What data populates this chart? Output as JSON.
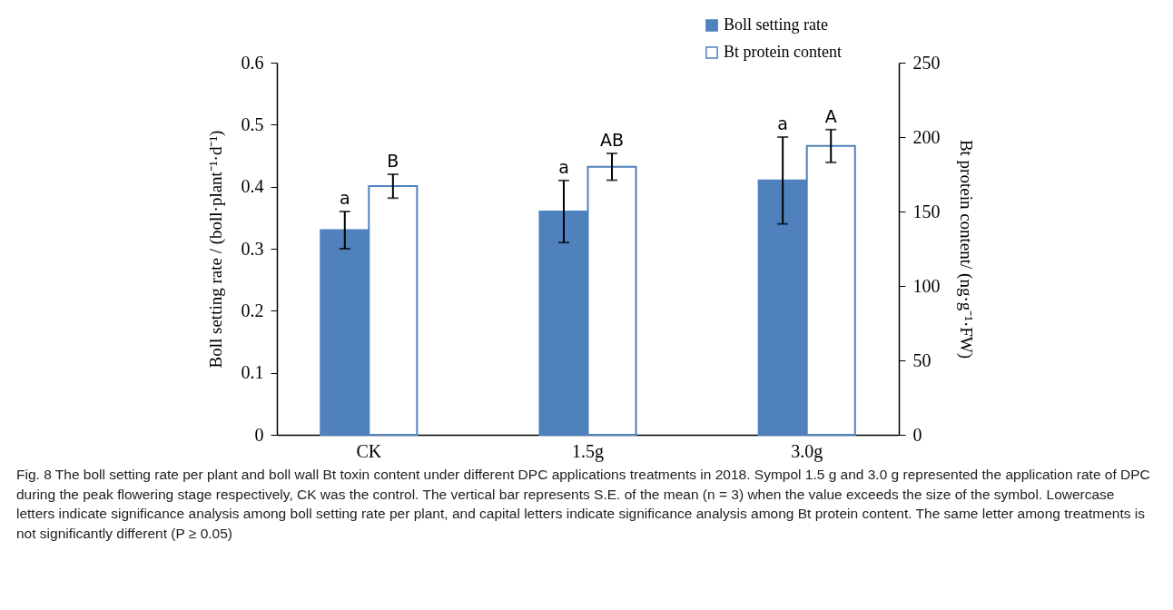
{
  "chart_data": {
    "type": "bar",
    "categories": [
      "CK",
      "1.5g",
      "3.0g"
    ],
    "ylabel": "Boll setting rate / (boll·plant⁻¹·d⁻¹)",
    "y2label": "Bt protein content/ (ng·g⁻¹·FW)",
    "series": [
      {
        "name": "Boll setting rate",
        "color": "#4f81bd",
        "values": [
          0.33,
          0.36,
          0.41
        ],
        "errors": [
          0.03,
          0.05,
          0.07
        ],
        "value_labels": [
          "a",
          "a",
          "a"
        ]
      },
      {
        "name": "Bt protein content",
        "color": "#ffffff",
        "axis": "y2",
        "values": [
          167,
          180,
          194
        ],
        "errors": [
          8,
          9,
          11
        ],
        "value_labels": [
          "B",
          "AB",
          "A"
        ]
      }
    ],
    "ylim": [
      0,
      0.6
    ],
    "yticks": [
      0,
      0.1,
      0.2,
      0.3,
      0.4,
      0.5,
      0.6
    ],
    "y2lim": [
      0,
      250
    ],
    "y2ticks": [
      0,
      50,
      100,
      150,
      200,
      250
    ],
    "legend": "top right",
    "annotations": [
      "Fig. 8 The boll setting rate per plant and boll wall Bt toxin content under different DPC applications treatments in 2018. Sympol 1.5 g and 3.0 g represented the application rate of DPC during the peak flowering stage respectively, CK was the control. The vertical bar represents S.E. of the mean (n = 3) when the value exceeds the size of the symbol. Lowercase letters indicate significance analysis among boll setting rate per plant, and capital letters indicate significance analysis among Bt protein content. The same letter among treatments is not significantly different (P ≥ 0.05)"
    ]
  }
}
